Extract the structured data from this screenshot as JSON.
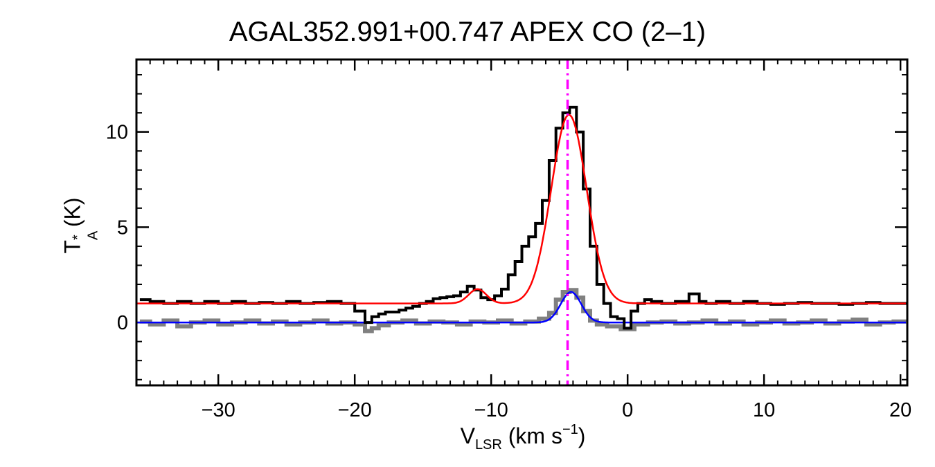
{
  "chart_data": {
    "type": "line",
    "title": "AGAL352.991+00.747  APEX CO (2–1)",
    "xlabel": {
      "main": "V",
      "sub": "LSR",
      "unit": " (km s",
      "sup": "−1",
      "close": ")"
    },
    "ylabel": {
      "main": "T",
      "sup": "*",
      "sub": "A",
      "unit": " (K)"
    },
    "xlim": [
      -36,
      20.5
    ],
    "ylim": [
      -3.3,
      13.8
    ],
    "xticks": [
      -30,
      -20,
      -10,
      0,
      10,
      20
    ],
    "xtick_labels": [
      "−30",
      "−20",
      "−10",
      "0",
      "10",
      "20"
    ],
    "yticks": [
      0,
      5,
      10
    ],
    "ytick_labels": [
      "0",
      "5",
      "10"
    ],
    "vline": {
      "x": -4.4,
      "color": "#ff00ff",
      "style": "dash-dot"
    },
    "colors": {
      "co21": "#000000",
      "co21_fit": "#ff0000",
      "secondary": "#808080",
      "secondary_fit": "#0000ff"
    },
    "series": [
      {
        "key": "co21",
        "render": "step",
        "x": [
          -35.5,
          -34.5,
          -33.5,
          -32.5,
          -31.5,
          -30.5,
          -29.5,
          -28.5,
          -27.5,
          -26.5,
          -25.5,
          -24.5,
          -23.5,
          -22.5,
          -21.5,
          -20.5,
          -19.5,
          -19,
          -18.5,
          -18,
          -17.5,
          -17,
          -16.5,
          -16,
          -15.5,
          -15,
          -14.5,
          -14,
          -13.5,
          -13,
          -12.5,
          -12,
          -11.5,
          -11,
          -10.5,
          -10,
          -9.5,
          -9,
          -8.5,
          -8,
          -7.5,
          -7,
          -6.5,
          -6,
          -5.5,
          -5,
          -4.5,
          -4,
          -3.5,
          -3,
          -2.5,
          -2,
          -1.5,
          -1,
          -0.5,
          0,
          0.5,
          1,
          1.5,
          2,
          3,
          4,
          5,
          5.5,
          6,
          7,
          8,
          9,
          10,
          11,
          12,
          13,
          14,
          15,
          16,
          17,
          18,
          19,
          20
        ],
        "y": [
          1.2,
          1.1,
          1.0,
          1.1,
          1.0,
          1.1,
          1.0,
          1.1,
          1.0,
          1.05,
          1.0,
          1.1,
          1.0,
          1.05,
          1.1,
          1.0,
          0.6,
          0.0,
          0.3,
          0.45,
          0.55,
          0.55,
          0.65,
          0.75,
          0.85,
          1.0,
          1.1,
          1.25,
          1.3,
          1.35,
          1.4,
          1.6,
          1.9,
          1.7,
          1.3,
          1.2,
          1.4,
          1.75,
          2.5,
          3.2,
          4.0,
          4.5,
          5.2,
          6.4,
          8.5,
          10.2,
          11.0,
          11.3,
          10.0,
          7.0,
          4.0,
          2.0,
          1.0,
          0.3,
          0.2,
          -0.3,
          0.6,
          1.0,
          1.2,
          1.1,
          1.0,
          1.1,
          1.5,
          1.1,
          1.0,
          1.1,
          1.0,
          1.1,
          1.0,
          0.95,
          1.0,
          1.05,
          1.0,
          1.0,
          0.95,
          1.0,
          1.05,
          1.0,
          1.0
        ]
      },
      {
        "key": "co21_fit",
        "render": "gauss",
        "baseline": 1.0,
        "components": [
          {
            "amp": 9.9,
            "center": -4.3,
            "sigma": 1.3
          },
          {
            "amp": 0.75,
            "center": -11.0,
            "sigma": 0.65
          }
        ]
      },
      {
        "key": "secondary",
        "render": "step",
        "x": [
          -35.5,
          -34.5,
          -33.5,
          -32.5,
          -31.5,
          -30.5,
          -29.5,
          -28.5,
          -27.5,
          -26.5,
          -25.5,
          -24.5,
          -23.5,
          -22.5,
          -21.5,
          -20.5,
          -19.5,
          -19,
          -18.5,
          -18,
          -17,
          -16,
          -15,
          -14,
          -13,
          -12,
          -11,
          -10,
          -9,
          -8,
          -7,
          -6,
          -5.5,
          -5,
          -4.5,
          -4,
          -3.5,
          -3,
          -2.5,
          -2,
          -1,
          0,
          1,
          2,
          3,
          4,
          5,
          6,
          7,
          8,
          9,
          10,
          11,
          12,
          13,
          14,
          15,
          16,
          17,
          18,
          19,
          20
        ],
        "y": [
          0.05,
          -0.1,
          0.1,
          -0.2,
          0.0,
          0.1,
          -0.1,
          0.0,
          0.1,
          -0.05,
          0.05,
          -0.1,
          0.0,
          0.1,
          -0.05,
          0.0,
          -0.1,
          -0.45,
          -0.3,
          -0.15,
          0.0,
          0.1,
          -0.05,
          0.05,
          0.0,
          -0.1,
          0.05,
          0.0,
          0.1,
          -0.05,
          0.05,
          0.2,
          0.5,
          1.2,
          1.6,
          1.7,
          1.3,
          0.6,
          0.1,
          -0.1,
          -0.2,
          -0.35,
          -0.1,
          0.0,
          0.05,
          -0.05,
          0.0,
          0.1,
          -0.05,
          0.05,
          -0.1,
          0.0,
          0.1,
          -0.05,
          0.0,
          0.1,
          -0.05,
          0.05,
          0.15,
          -0.1,
          0.0,
          0.05
        ]
      },
      {
        "key": "secondary_fit",
        "render": "gauss",
        "baseline": 0.0,
        "components": [
          {
            "amp": 1.6,
            "center": -4.15,
            "sigma": 0.75
          }
        ]
      }
    ]
  }
}
